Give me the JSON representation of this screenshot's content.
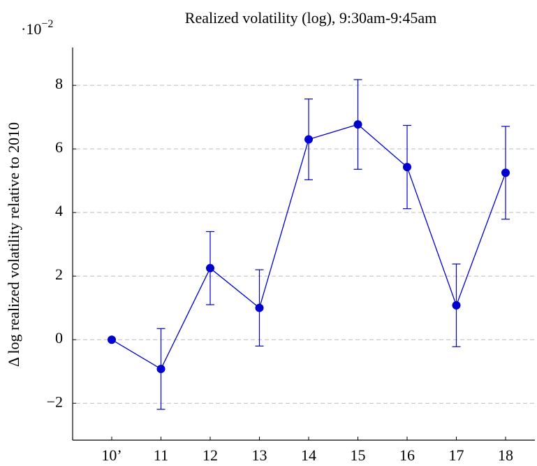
{
  "chart_data": {
    "type": "line",
    "title": "Realized volatility (log), 9:30am-9:45am",
    "y_scale_label": {
      "base": "·10",
      "exponent": "−2"
    },
    "ylabel": "Δ log realized volatility relative to 2010",
    "categories": [
      "10’",
      "11",
      "12",
      "13",
      "14",
      "15",
      "16",
      "17",
      "18"
    ],
    "values": [
      0,
      -0.92,
      2.25,
      1.0,
      6.3,
      6.77,
      5.43,
      1.08,
      5.25
    ],
    "errors": [
      0,
      1.27,
      1.15,
      1.2,
      1.27,
      1.41,
      1.31,
      1.3,
      1.46
    ],
    "color": "#0000cc",
    "ylim": [
      -3.16,
      9.19
    ],
    "yticks": [
      {
        "value": -2,
        "label": "−2"
      },
      0,
      2,
      4,
      6,
      8
    ],
    "grid": true
  }
}
